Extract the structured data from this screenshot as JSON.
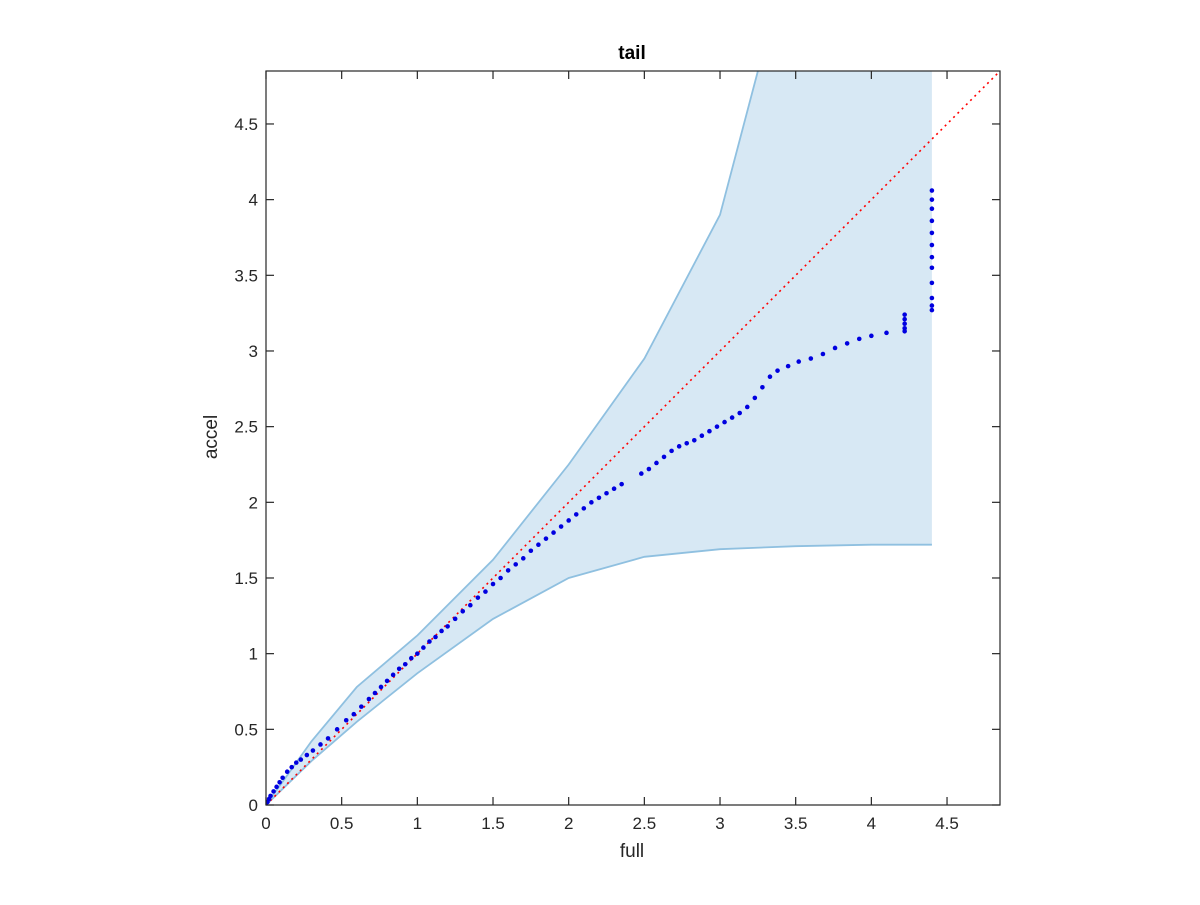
{
  "chart_data": {
    "type": "scatter",
    "title": "tail",
    "xlabel": "full",
    "ylabel": "accel",
    "xlim": [
      0,
      4.85
    ],
    "ylim": [
      0,
      4.85
    ],
    "xticks": [
      "0",
      "0.5",
      "1",
      "1.5",
      "2",
      "2.5",
      "3",
      "3.5",
      "4",
      "4.5"
    ],
    "yticks": [
      "0",
      "0.5",
      "1",
      "1.5",
      "2",
      "2.5",
      "3",
      "3.5",
      "4",
      "4.5"
    ],
    "grid": false,
    "legend": "none",
    "reference_line": {
      "style": "dotted",
      "color": "#ff0000",
      "x": [
        0,
        4.85
      ],
      "y": [
        0,
        4.85
      ]
    },
    "confidence_band": {
      "fill_color": "#d7e8f4",
      "edge_color": "#8fc0e0",
      "upper": {
        "x": [
          0,
          0.3,
          0.6,
          1.0,
          1.5,
          2.0,
          2.5,
          3.0,
          3.25
        ],
        "y": [
          0,
          0.42,
          0.78,
          1.12,
          1.62,
          2.25,
          2.95,
          3.9,
          4.85
        ]
      },
      "upper_edge_right": {
        "x": [
          4.4
        ],
        "y": [
          4.85
        ]
      },
      "lower": {
        "x": [
          0,
          0.3,
          0.6,
          1.0,
          1.5,
          2.0,
          2.5,
          3.0,
          3.5,
          4.0,
          4.4
        ],
        "y": [
          0,
          0.29,
          0.55,
          0.87,
          1.23,
          1.5,
          1.64,
          1.69,
          1.71,
          1.72,
          1.72
        ]
      }
    },
    "series": [
      {
        "color": "#0000e0",
        "x": [
          0,
          0.01,
          0.02,
          0.03,
          0.05,
          0.07,
          0.09,
          0.11,
          0.14,
          0.17,
          0.2,
          0.23,
          0.27,
          0.31,
          0.36,
          0.41,
          0.47,
          0.53,
          0.58,
          0.63,
          0.68,
          0.72,
          0.76,
          0.8,
          0.84,
          0.88,
          0.92,
          0.96,
          1.0,
          1.04,
          1.08,
          1.12,
          1.16,
          1.2,
          1.25,
          1.3,
          1.35,
          1.4,
          1.45,
          1.5,
          1.55,
          1.6,
          1.65,
          1.7,
          1.75,
          1.8,
          1.85,
          1.9,
          1.95,
          2.0,
          2.05,
          2.1,
          2.15,
          2.2,
          2.25,
          2.3,
          2.35,
          2.48,
          2.53,
          2.58,
          2.63,
          2.68,
          2.73,
          2.78,
          2.83,
          2.88,
          2.93,
          2.98,
          3.03,
          3.08,
          3.13,
          3.18,
          3.23,
          3.28,
          3.33,
          3.38,
          3.45,
          3.52,
          3.6,
          3.68,
          3.76,
          3.84,
          3.92,
          4.0,
          4.1,
          4.22,
          4.22,
          4.22,
          4.22,
          4.22,
          4.4,
          4.4,
          4.4,
          4.4,
          4.4,
          4.4,
          4.4,
          4.4,
          4.4,
          4.4,
          4.4,
          4.4
        ],
        "y": [
          0,
          0.02,
          0.04,
          0.06,
          0.09,
          0.12,
          0.15,
          0.18,
          0.22,
          0.25,
          0.28,
          0.3,
          0.33,
          0.36,
          0.4,
          0.44,
          0.5,
          0.56,
          0.6,
          0.65,
          0.7,
          0.74,
          0.78,
          0.82,
          0.86,
          0.9,
          0.93,
          0.97,
          1.0,
          1.04,
          1.08,
          1.11,
          1.15,
          1.18,
          1.23,
          1.28,
          1.32,
          1.37,
          1.41,
          1.46,
          1.5,
          1.55,
          1.59,
          1.63,
          1.68,
          1.72,
          1.76,
          1.8,
          1.84,
          1.88,
          1.92,
          1.96,
          2.0,
          2.03,
          2.06,
          2.09,
          2.12,
          2.19,
          2.22,
          2.26,
          2.3,
          2.34,
          2.37,
          2.39,
          2.41,
          2.44,
          2.47,
          2.5,
          2.53,
          2.56,
          2.59,
          2.63,
          2.69,
          2.76,
          2.83,
          2.87,
          2.9,
          2.93,
          2.95,
          2.98,
          3.02,
          3.05,
          3.08,
          3.1,
          3.12,
          3.15,
          3.18,
          3.21,
          3.24,
          3.13,
          3.27,
          3.35,
          3.45,
          3.55,
          3.62,
          3.7,
          3.78,
          3.86,
          3.94,
          4.0,
          4.06,
          3.3
        ]
      }
    ]
  }
}
